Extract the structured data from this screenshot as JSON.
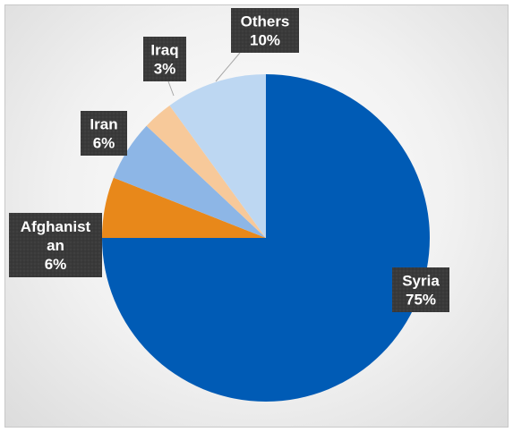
{
  "chart_data": {
    "type": "pie",
    "title": "",
    "slices": [
      {
        "label": "Syria",
        "value": 75,
        "percent_label": "75%",
        "color": "#005BB5"
      },
      {
        "label": "Afghanistan",
        "value": 6,
        "percent_label": "6%",
        "color": "#E8881A"
      },
      {
        "label": "Iran",
        "value": 6,
        "percent_label": "6%",
        "color": "#8DB6E6"
      },
      {
        "label": "Iraq",
        "value": 3,
        "percent_label": "3%",
        "color": "#F7C99A"
      },
      {
        "label": "Others",
        "value": 10,
        "percent_label": "10%",
        "color": "#BDD7F2"
      }
    ],
    "start_angle_deg": 0,
    "direction": "clockwise",
    "legend": "none",
    "label_style": "dark callout boxes with white bold text and leader lines",
    "label_box_color": "#3A3A3A"
  }
}
